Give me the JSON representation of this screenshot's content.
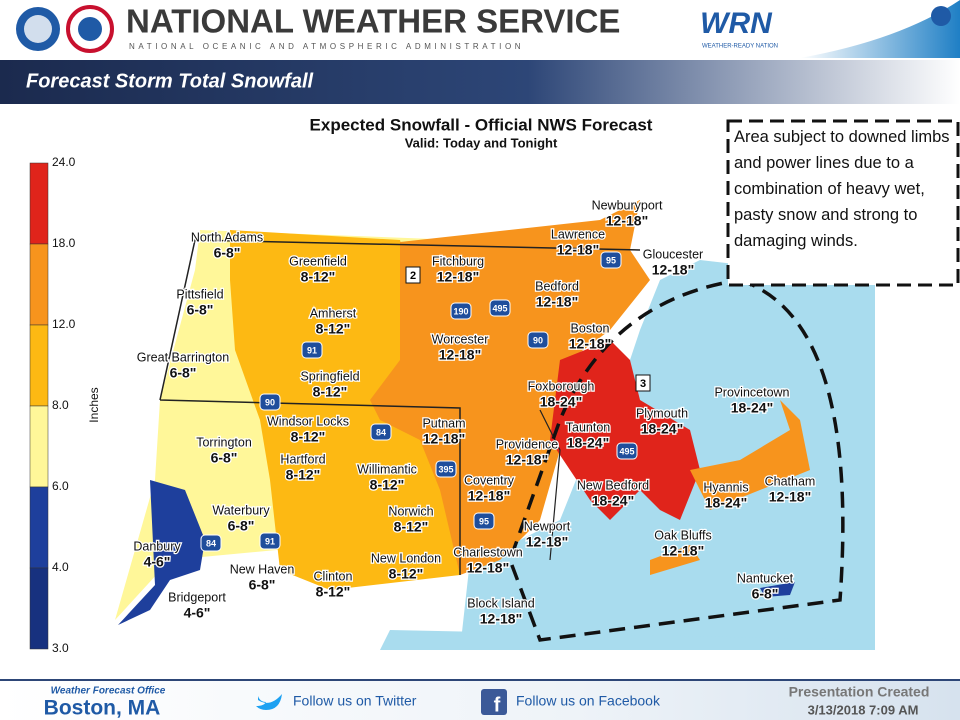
{
  "header": {
    "title": "NATIONAL WEATHER SERVICE",
    "subtitle": "NATIONAL OCEANIC AND ATMOSPHERIC ADMINISTRATION",
    "wrn": "WRN",
    "wrn_caption": "WEATHER-READY NATION"
  },
  "banner": "Forecast Storm Total Snowfall",
  "map": {
    "title": "Expected Snowfall - Official NWS Forecast",
    "valid": "Valid: Today and Tonight",
    "legend": {
      "label": "Inches",
      "ticks": [
        "24.0",
        "18.0",
        "12.0",
        "8.0",
        "6.0",
        "4.0",
        "3.0"
      ],
      "colors": [
        "#e0241b",
        "#f7941d",
        "#fdb913",
        "#fff799",
        "#1e3f9c",
        "#17317f"
      ]
    },
    "zones": [
      "2",
      "3"
    ],
    "highways": [
      "95",
      "190",
      "495",
      "91",
      "90",
      "90",
      "84",
      "395",
      "495",
      "95",
      "84",
      "91"
    ],
    "locations": [
      {
        "name": "North Adams",
        "amount": "6-8\""
      },
      {
        "name": "Pittsfield",
        "amount": "6-8\""
      },
      {
        "name": "Great Barrington",
        "amount": "6-8\""
      },
      {
        "name": "Greenfield",
        "amount": "8-12\""
      },
      {
        "name": "Amherst",
        "amount": "8-12\""
      },
      {
        "name": "Springfield",
        "amount": "8-12\""
      },
      {
        "name": "Fitchburg",
        "amount": "12-18\""
      },
      {
        "name": "Worcester",
        "amount": "12-18\""
      },
      {
        "name": "Bedford",
        "amount": "12-18\""
      },
      {
        "name": "Lawrence",
        "amount": "12-18\""
      },
      {
        "name": "Newburyport",
        "amount": "12-18\""
      },
      {
        "name": "Gloucester",
        "amount": "12-18\""
      },
      {
        "name": "Boston",
        "amount": "12-18\""
      },
      {
        "name": "Foxborough",
        "amount": "18-24\""
      },
      {
        "name": "Plymouth",
        "amount": "18-24\""
      },
      {
        "name": "Provincetown",
        "amount": "18-24\""
      },
      {
        "name": "Taunton",
        "amount": "18-24\""
      },
      {
        "name": "Windsor Locks",
        "amount": "8-12\""
      },
      {
        "name": "Putnam",
        "amount": "12-18\""
      },
      {
        "name": "Providence",
        "amount": "12-18\""
      },
      {
        "name": "Torrington",
        "amount": "6-8\""
      },
      {
        "name": "Hartford",
        "amount": "8-12\""
      },
      {
        "name": "Willimantic",
        "amount": "8-12\""
      },
      {
        "name": "Coventry",
        "amount": "12-18\""
      },
      {
        "name": "New Bedford",
        "amount": "18-24\""
      },
      {
        "name": "Hyannis",
        "amount": "18-24\""
      },
      {
        "name": "Chatham",
        "amount": "12-18\""
      },
      {
        "name": "Waterbury",
        "amount": "6-8\""
      },
      {
        "name": "Norwich",
        "amount": "8-12\""
      },
      {
        "name": "Newport",
        "amount": "12-18\""
      },
      {
        "name": "Oak Bluffs",
        "amount": "12-18\""
      },
      {
        "name": "Danbury",
        "amount": "4-6\""
      },
      {
        "name": "New London",
        "amount": "8-12\""
      },
      {
        "name": "Charlestown",
        "amount": "12-18\""
      },
      {
        "name": "New Haven",
        "amount": "6-8\""
      },
      {
        "name": "Clinton",
        "amount": "8-12\""
      },
      {
        "name": "Nantucket",
        "amount": "6-8\""
      },
      {
        "name": "Bridgeport",
        "amount": "4-6\""
      },
      {
        "name": "Block Island",
        "amount": "12-18\""
      }
    ]
  },
  "annotation": "Area subject to downed limbs and power lines due to a combination of heavy  wet, pasty snow and strong to damaging winds.",
  "footer": {
    "office_label": "Weather Forecast Office",
    "office": "Boston, MA",
    "twitter": "Follow us on Twitter",
    "facebook": "Follow us on Facebook",
    "created": "Presentation Created",
    "date": "3/13/2018 7:09 AM"
  }
}
